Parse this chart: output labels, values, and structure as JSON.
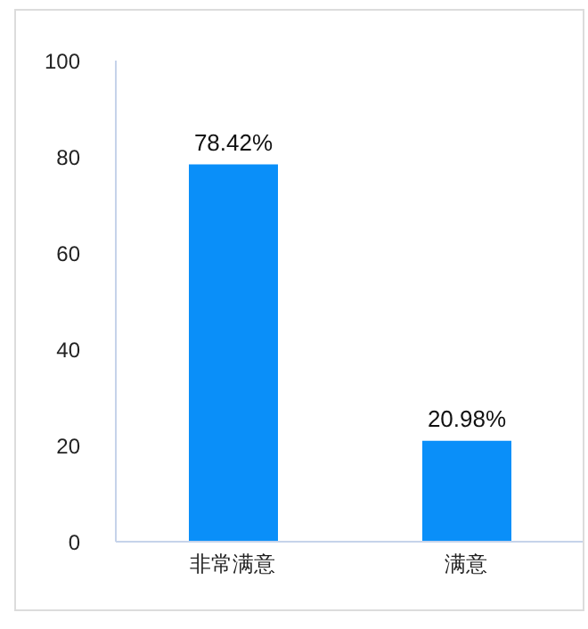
{
  "chart_data": {
    "type": "bar",
    "categories": [
      "非常满意",
      "满意"
    ],
    "values": [
      78.42,
      20.98
    ],
    "value_labels": [
      "78.42%",
      "20.98%"
    ],
    "color": "#0a8ff9",
    "ylim": [
      0,
      100
    ],
    "yticks": [
      0,
      20,
      40,
      60,
      80,
      100
    ]
  }
}
